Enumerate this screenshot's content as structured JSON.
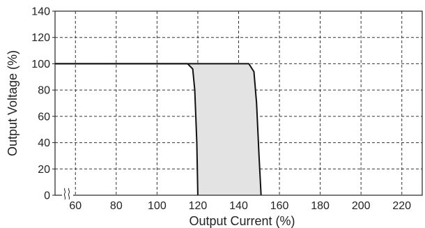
{
  "chart_data": {
    "type": "line",
    "title": "",
    "xlabel": "Output Current (%)",
    "ylabel": "Output Voltage (%)",
    "xlim": [
      50,
      230
    ],
    "ylim": [
      0,
      140
    ],
    "x_ticks": [
      60,
      80,
      100,
      120,
      140,
      160,
      180,
      200,
      220
    ],
    "y_ticks": [
      0,
      20,
      40,
      60,
      80,
      100,
      120,
      140
    ],
    "x_axis_break": true,
    "grid": true,
    "legend": "none",
    "series": [
      {
        "x": [
          50,
          115,
          117.5,
          118.5,
          119.5,
          120
        ],
        "y": [
          100,
          100,
          96,
          80,
          40,
          0
        ]
      },
      {
        "x": [
          50,
          145,
          147.5,
          148.8,
          150,
          151
        ],
        "y": [
          100,
          100,
          94,
          70,
          30,
          0
        ]
      }
    ],
    "shaded_region": {
      "upper_x": [
        117,
        146.5
      ],
      "lower_x": [
        120,
        151
      ],
      "y_range": [
        0,
        100
      ]
    },
    "colors": {
      "curve": "#111111",
      "band_fill": "#e3e3e3",
      "grid": "#333333",
      "text": "#222222"
    }
  }
}
